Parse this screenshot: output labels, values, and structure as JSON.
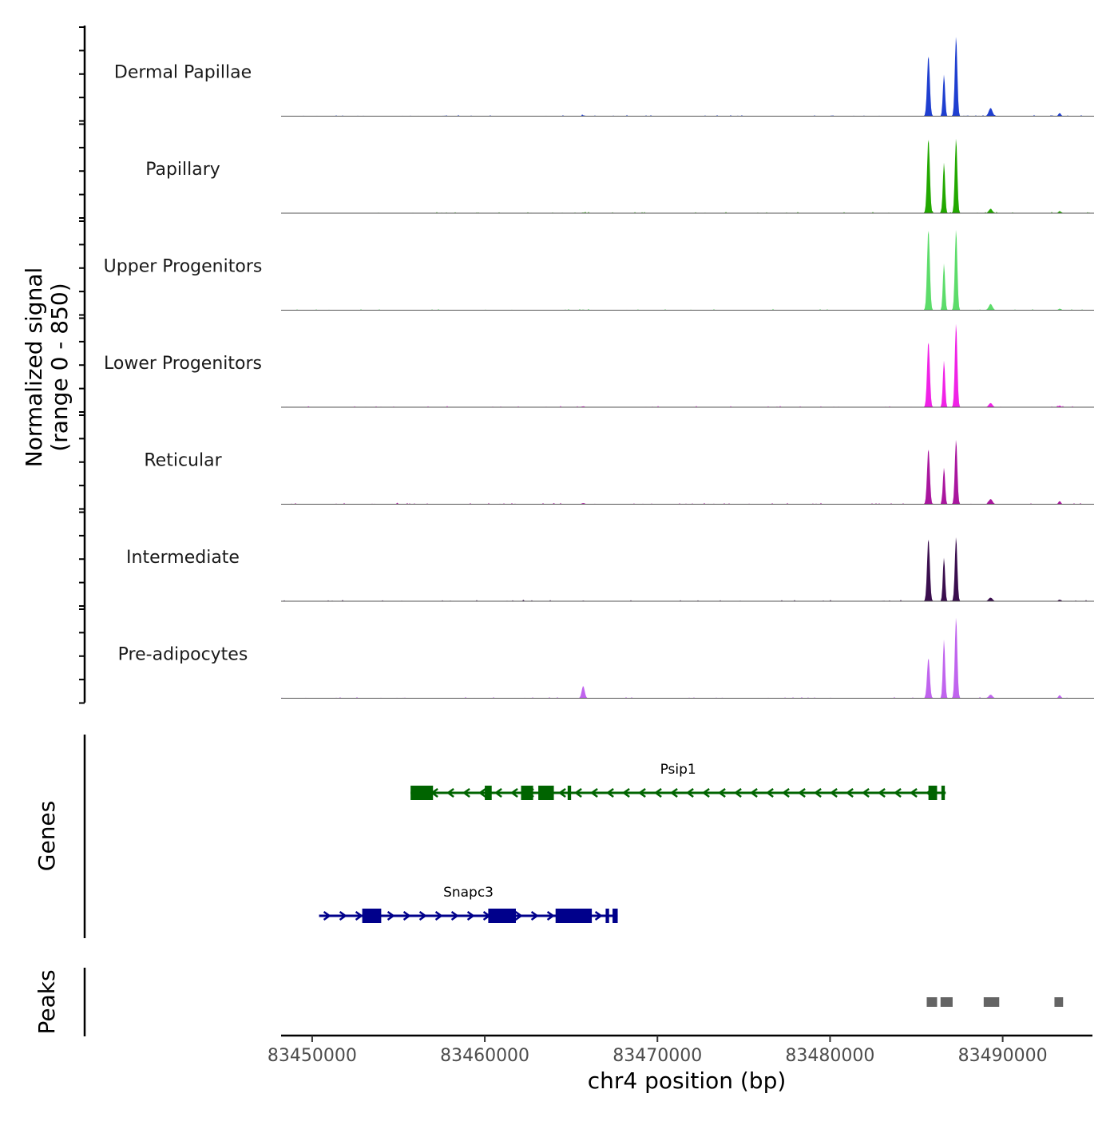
{
  "chart_data": {
    "type": "area",
    "title": "",
    "xlabel": "chr4 position (bp)",
    "ylabel_line1": "Normalized signal",
    "ylabel_line2": "(range 0 - 850)",
    "yrange": [
      0,
      850
    ],
    "xlim": [
      83448200,
      83495200
    ],
    "x_ticks": [
      83450000,
      83460000,
      83470000,
      83480000,
      83490000
    ],
    "x_tick_labels": [
      "83450000",
      "83460000",
      "83470000",
      "83480000",
      "83490000"
    ],
    "signal_peaks": [
      {
        "center": 83485700,
        "width": 110
      },
      {
        "center": 83486600,
        "width": 90
      },
      {
        "center": 83487300,
        "width": 100
      },
      {
        "center": 83489300,
        "width": 150
      },
      {
        "center": 83493300,
        "width": 100
      },
      {
        "center": 83465700,
        "width": 120
      }
    ],
    "series": [
      {
        "name": "Dermal Papillae",
        "color": "#1f3fd0",
        "values": [
          600,
          410,
          790,
          80,
          30,
          8
        ]
      },
      {
        "name": "Papillary",
        "color": "#22a800",
        "values": [
          740,
          500,
          740,
          40,
          20,
          5
        ]
      },
      {
        "name": "Upper Progenitors",
        "color": "#5cdc6a",
        "values": [
          800,
          460,
          800,
          60,
          15,
          5
        ]
      },
      {
        "name": "Lower Progenitors",
        "color": "#f022e6",
        "values": [
          650,
          460,
          830,
          40,
          15,
          8
        ]
      },
      {
        "name": "Reticular",
        "color": "#a9169e",
        "values": [
          550,
          360,
          640,
          50,
          30,
          10
        ]
      },
      {
        "name": "Intermediate",
        "color": "#3a0e4e",
        "values": [
          620,
          430,
          630,
          35,
          15,
          5
        ]
      },
      {
        "name": "Pre-adipocytes",
        "color": "#c064ee",
        "values": [
          400,
          580,
          800,
          35,
          30,
          120
        ]
      }
    ],
    "genes_track_label": "Genes",
    "genes": [
      {
        "name": "Psip1",
        "strand": "-",
        "color": "#006400",
        "start": 83455700,
        "end": 83486700,
        "exons": [
          [
            83455700,
            83457000
          ],
          [
            83460000,
            83460400
          ],
          [
            83462100,
            83462800
          ],
          [
            83463100,
            83464000
          ],
          [
            83464800,
            83465000
          ],
          [
            83485700,
            83486200
          ],
          [
            83486450,
            83486650
          ]
        ]
      },
      {
        "name": "Snapc3",
        "strand": "+",
        "color": "#00008b",
        "start": 83450400,
        "end": 83467700,
        "exons": [
          [
            83452900,
            83454000
          ],
          [
            83460200,
            83461800
          ],
          [
            83464100,
            83466200
          ],
          [
            83467000,
            83467200
          ],
          [
            83467400,
            83467700
          ]
        ]
      }
    ],
    "peaks_track_label": "Peaks",
    "peaks_color": "#646464",
    "peaks": [
      [
        83485600,
        83486200
      ],
      [
        83486400,
        83487100
      ],
      [
        83488900,
        83489800
      ],
      [
        83493000,
        83493500
      ]
    ]
  }
}
